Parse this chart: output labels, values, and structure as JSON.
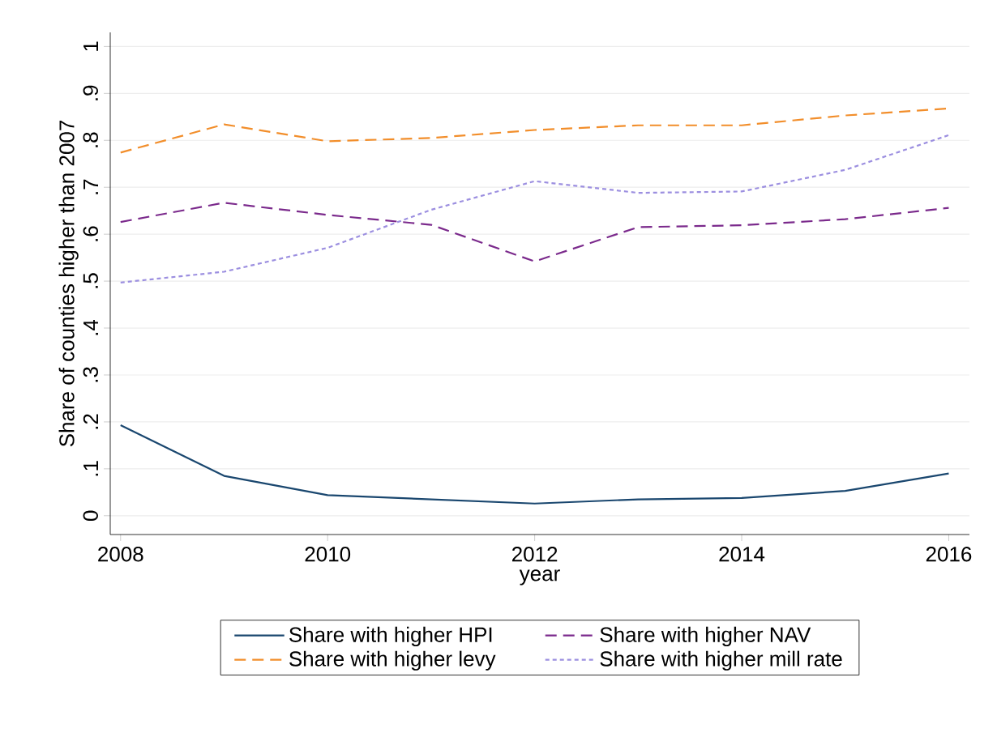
{
  "chart_data": {
    "type": "line",
    "xlabel": "year",
    "ylabel": "Share of counties higher than 2007",
    "x": [
      2008,
      2009,
      2010,
      2011,
      2012,
      2013,
      2014,
      2015,
      2016
    ],
    "series": [
      {
        "name": "Share with higher HPI",
        "color": "#1a476f",
        "line_style": "solid",
        "values": [
          0.193,
          0.085,
          0.044,
          0.035,
          0.026,
          0.035,
          0.038,
          0.053,
          0.09
        ]
      },
      {
        "name": "Share with higher NAV",
        "color": "#7b2a8c",
        "line_style": "dashed",
        "values": [
          0.626,
          0.667,
          0.641,
          0.62,
          0.542,
          0.615,
          0.619,
          0.632,
          0.656
        ]
      },
      {
        "name": "Share with higher levy",
        "color": "#f28e2b",
        "line_style": "dashed",
        "values": [
          0.774,
          0.834,
          0.798,
          0.805,
          0.822,
          0.832,
          0.832,
          0.853,
          0.868
        ]
      },
      {
        "name": "Share with higher mill rate",
        "color": "#9c8fe0",
        "line_style": "dotted",
        "values": [
          0.497,
          0.52,
          0.571,
          0.652,
          0.713,
          0.688,
          0.691,
          0.737,
          0.811
        ]
      }
    ],
    "xlim": [
      2007.9,
      2016.2
    ],
    "ylim": [
      -0.04,
      1.03
    ],
    "xticks": [
      2008,
      2010,
      2012,
      2014,
      2016
    ],
    "yticks": [
      0,
      {
        "value": 0.1,
        "label": ".1"
      },
      {
        "value": 0.2,
        "label": ".2"
      },
      {
        "value": 0.3,
        "label": ".3"
      },
      {
        "value": 0.4,
        "label": ".4"
      },
      {
        "value": 0.5,
        "label": ".5"
      },
      {
        "value": 0.6,
        "label": ".6"
      },
      {
        "value": 0.7,
        "label": ".7"
      },
      {
        "value": 0.8,
        "label": ".8"
      },
      {
        "value": 0.9,
        "label": ".9"
      },
      1
    ],
    "grid": "y",
    "legend": "bottom",
    "marker": "none"
  }
}
